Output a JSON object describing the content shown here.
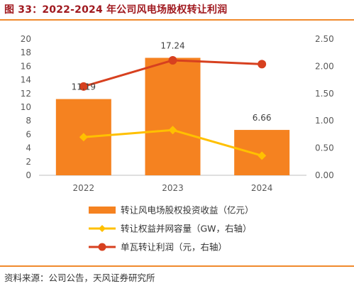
{
  "header": {
    "title": "图 33：2022-2024 年公司风电场股权转让利润",
    "source": "资料来源：公司公告，天风证券研究所"
  },
  "chart_data": {
    "type": "bar",
    "categories": [
      "2022",
      "2023",
      "2024"
    ],
    "series": [
      {
        "name": "转让风电场股权投资收益（亿元）",
        "type": "bar",
        "axis": "left",
        "color": "#f58220",
        "values": [
          11.19,
          17.24,
          6.66
        ],
        "labels": [
          "11.19",
          "17.24",
          "6.66"
        ]
      },
      {
        "name": "转让权益并网容量（GW，右轴）",
        "type": "line",
        "axis": "right",
        "color": "#ffc000",
        "marker": "diamond",
        "values": [
          0.7,
          0.83,
          0.36
        ]
      },
      {
        "name": "单瓦转让利润（元，右轴）",
        "type": "line",
        "axis": "right",
        "color": "#d7401f",
        "marker": "circle",
        "values": [
          1.63,
          2.11,
          2.04
        ]
      }
    ],
    "y_left": {
      "min": 0,
      "max": 20,
      "ticks": [
        "0",
        "2",
        "4",
        "6",
        "8",
        "10",
        "12",
        "14",
        "16",
        "18",
        "20"
      ]
    },
    "y_right": {
      "min": 0,
      "max": 2.5,
      "ticks": [
        "0.00",
        "0.50",
        "1.00",
        "1.50",
        "2.00",
        "2.50"
      ]
    },
    "legend_position": "bottom",
    "grid": false
  }
}
